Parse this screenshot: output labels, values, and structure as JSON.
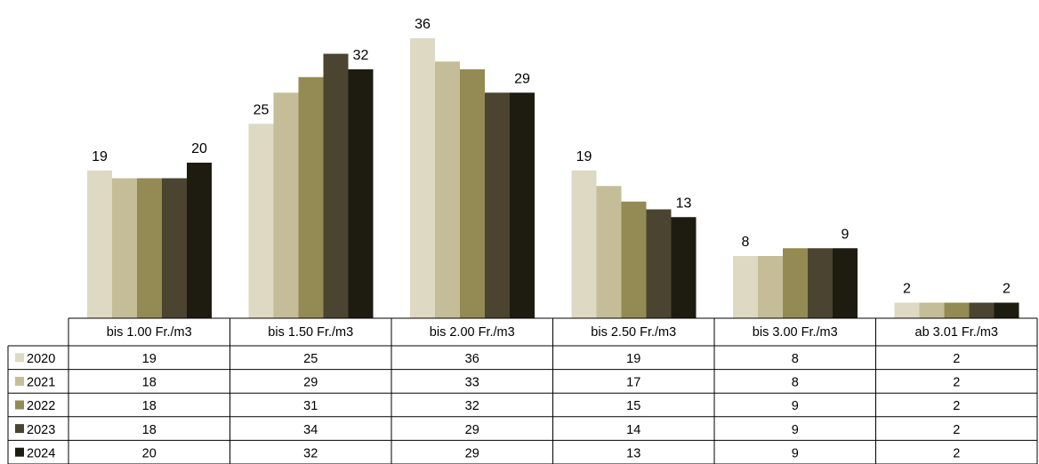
{
  "chart_data": {
    "type": "bar",
    "categories": [
      "bis 1.00 Fr./m3",
      "bis 1.50 Fr./m3",
      "bis 2.00 Fr./m3",
      "bis 2.50 Fr./m3",
      "bis 3.00 Fr./m3",
      "ab 3.01 Fr./m3"
    ],
    "series": [
      {
        "name": "2020",
        "color": "#ddd9c3",
        "values": [
          19,
          25,
          36,
          19,
          8,
          2
        ]
      },
      {
        "name": "2021",
        "color": "#c4bd97",
        "values": [
          18,
          29,
          33,
          17,
          8,
          2
        ]
      },
      {
        "name": "2022",
        "color": "#948a54",
        "values": [
          18,
          31,
          32,
          15,
          9,
          2
        ]
      },
      {
        "name": "2023",
        "color": "#4a4430",
        "values": [
          18,
          34,
          29,
          14,
          9,
          2
        ]
      },
      {
        "name": "2024",
        "color": "#1e1c11",
        "values": [
          20,
          32,
          29,
          13,
          9,
          2
        ]
      }
    ],
    "data_labels": [
      {
        "category": 0,
        "series": 0,
        "text": "19"
      },
      {
        "category": 0,
        "series": 4,
        "text": "20"
      },
      {
        "category": 1,
        "series": 0,
        "text": "25"
      },
      {
        "category": 1,
        "series": 4,
        "text": "32"
      },
      {
        "category": 2,
        "series": 0,
        "text": "36"
      },
      {
        "category": 2,
        "series": 4,
        "text": "29"
      },
      {
        "category": 3,
        "series": 0,
        "text": "19"
      },
      {
        "category": 3,
        "series": 4,
        "text": "13"
      },
      {
        "category": 4,
        "series": 0,
        "text": "8"
      },
      {
        "category": 4,
        "series": 4,
        "text": "9"
      },
      {
        "category": 5,
        "series": 0,
        "text": "2"
      },
      {
        "category": 5,
        "series": 4,
        "text": "2"
      }
    ],
    "ylim": [
      0,
      36
    ],
    "grid": false,
    "legend": "data-table",
    "title": "",
    "xlabel": "",
    "ylabel": ""
  }
}
